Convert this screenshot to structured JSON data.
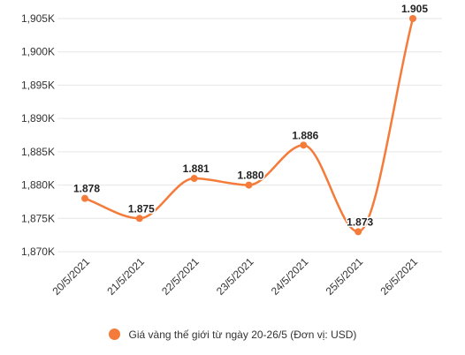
{
  "colors": {
    "series": "#f47b3a",
    "grid": "#e6e6e6",
    "text": "#333333"
  },
  "chart_data": {
    "type": "line",
    "categories": [
      "20/5/2021",
      "21/5/2021",
      "22/5/2021",
      "23/5/2021",
      "24/5/2021",
      "25/5/2021",
      "26/5/2021"
    ],
    "series": [
      {
        "name": "Giá vàng thế giới từ ngày 20-26/5 (Đơn vị: USD)",
        "values": [
          1878,
          1875,
          1881,
          1880,
          1886,
          1873,
          1905
        ],
        "data_labels": [
          "1.878",
          "1.875",
          "1.881",
          "1.880",
          "1.886",
          "1.873",
          "1.905"
        ]
      }
    ],
    "yticks": [
      1870,
      1875,
      1880,
      1885,
      1890,
      1895,
      1900,
      1905
    ],
    "ytick_labels": [
      "1,870K",
      "1,875K",
      "1,880K",
      "1,885K",
      "1,890K",
      "1,895K",
      "1,900K",
      "1,905K"
    ],
    "ylim": [
      1870,
      1905
    ],
    "grid": true,
    "legend_position": "bottom",
    "title": "",
    "xlabel": "",
    "ylabel": ""
  }
}
